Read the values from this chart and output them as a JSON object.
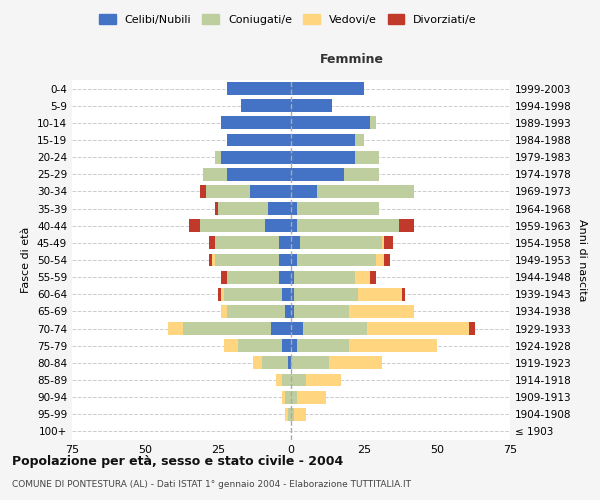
{
  "age_groups": [
    "100+",
    "95-99",
    "90-94",
    "85-89",
    "80-84",
    "75-79",
    "70-74",
    "65-69",
    "60-64",
    "55-59",
    "50-54",
    "45-49",
    "40-44",
    "35-39",
    "30-34",
    "25-29",
    "20-24",
    "15-19",
    "10-14",
    "5-9",
    "0-4"
  ],
  "birth_years": [
    "≤ 1903",
    "1904-1908",
    "1909-1913",
    "1914-1918",
    "1919-1923",
    "1924-1928",
    "1929-1933",
    "1934-1938",
    "1939-1943",
    "1944-1948",
    "1949-1953",
    "1954-1958",
    "1959-1963",
    "1964-1968",
    "1969-1973",
    "1974-1978",
    "1979-1983",
    "1984-1988",
    "1989-1993",
    "1994-1998",
    "1999-2003"
  ],
  "male": {
    "celibe": [
      0,
      0,
      0,
      0,
      1,
      3,
      7,
      2,
      3,
      4,
      4,
      4,
      9,
      8,
      14,
      22,
      24,
      22,
      24,
      17,
      22
    ],
    "coniugato": [
      0,
      1,
      2,
      3,
      9,
      15,
      30,
      20,
      20,
      18,
      22,
      22,
      22,
      17,
      15,
      8,
      2,
      0,
      0,
      0,
      0
    ],
    "vedovo": [
      0,
      1,
      1,
      2,
      3,
      5,
      5,
      2,
      1,
      0,
      1,
      0,
      0,
      0,
      0,
      0,
      0,
      0,
      0,
      0,
      0
    ],
    "divorziato": [
      0,
      0,
      0,
      0,
      0,
      0,
      0,
      0,
      1,
      2,
      1,
      2,
      4,
      1,
      2,
      0,
      0,
      0,
      0,
      0,
      0
    ]
  },
  "female": {
    "nubile": [
      0,
      0,
      0,
      0,
      0,
      2,
      4,
      1,
      1,
      1,
      2,
      3,
      2,
      2,
      9,
      18,
      22,
      22,
      27,
      14,
      25
    ],
    "coniugata": [
      0,
      1,
      2,
      5,
      13,
      18,
      22,
      19,
      22,
      21,
      27,
      28,
      35,
      28,
      33,
      12,
      8,
      3,
      2,
      0,
      0
    ],
    "vedova": [
      0,
      4,
      10,
      12,
      18,
      30,
      35,
      22,
      15,
      5,
      3,
      1,
      0,
      0,
      0,
      0,
      0,
      0,
      0,
      0,
      0
    ],
    "divorziata": [
      0,
      0,
      0,
      0,
      0,
      0,
      2,
      0,
      1,
      2,
      2,
      3,
      5,
      0,
      0,
      0,
      0,
      0,
      0,
      0,
      0
    ]
  },
  "colors": {
    "celibe": "#4472C4",
    "coniugato": "#BFCE9E",
    "vedovo": "#FFD580",
    "divorziato": "#C0392B"
  },
  "title": "Popolazione per età, sesso e stato civile - 2004",
  "subtitle": "COMUNE DI PONTESTURA (AL) - Dati ISTAT 1° gennaio 2004 - Elaborazione TUTTITALIA.IT",
  "ylabel_left": "Fasce di età",
  "ylabel_right": "Anni di nascita",
  "xlabel_right": "Femmine",
  "xlim": 75,
  "background_color": "#f5f5f5",
  "plot_bg": "#ffffff"
}
